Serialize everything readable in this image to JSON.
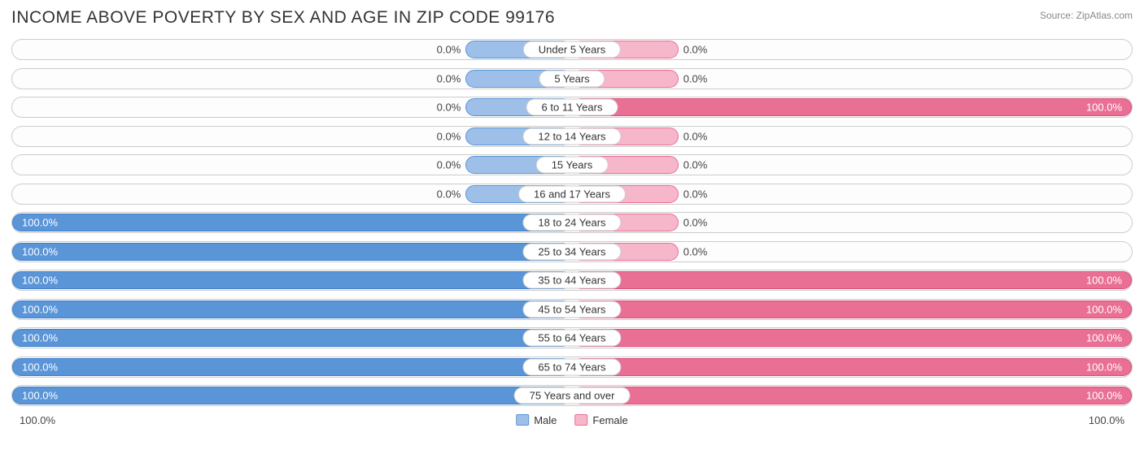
{
  "title": "INCOME ABOVE POVERTY BY SEX AND AGE IN ZIP CODE 99176",
  "source": "Source: ZipAtlas.com",
  "colors": {
    "male_fill": "#9ec0e8",
    "male_border": "#5a95d8",
    "male_full_fill": "#5a95d8",
    "male_full_border": "#3f7fc9",
    "female_fill": "#f7b7ca",
    "female_border": "#ea6f95",
    "female_full_fill": "#ea6f95",
    "female_full_border": "#d94e7a",
    "track_border": "#cccccc",
    "text": "#333333"
  },
  "min_bar_pct": 9.5,
  "rows": [
    {
      "label": "Under 5 Years",
      "male": 0,
      "female": 0
    },
    {
      "label": "5 Years",
      "male": 0,
      "female": 0
    },
    {
      "label": "6 to 11 Years",
      "male": 0,
      "female": 100
    },
    {
      "label": "12 to 14 Years",
      "male": 0,
      "female": 0
    },
    {
      "label": "15 Years",
      "male": 0,
      "female": 0
    },
    {
      "label": "16 and 17 Years",
      "male": 0,
      "female": 0
    },
    {
      "label": "18 to 24 Years",
      "male": 100,
      "female": 0
    },
    {
      "label": "25 to 34 Years",
      "male": 100,
      "female": 0
    },
    {
      "label": "35 to 44 Years",
      "male": 100,
      "female": 100
    },
    {
      "label": "45 to 54 Years",
      "male": 100,
      "female": 100
    },
    {
      "label": "55 to 64 Years",
      "male": 100,
      "female": 100
    },
    {
      "label": "65 to 74 Years",
      "male": 100,
      "female": 100
    },
    {
      "label": "75 Years and over",
      "male": 100,
      "female": 100
    }
  ],
  "axis": {
    "left": "100.0%",
    "right": "100.0%"
  },
  "legend": {
    "male": "Male",
    "female": "Female"
  }
}
